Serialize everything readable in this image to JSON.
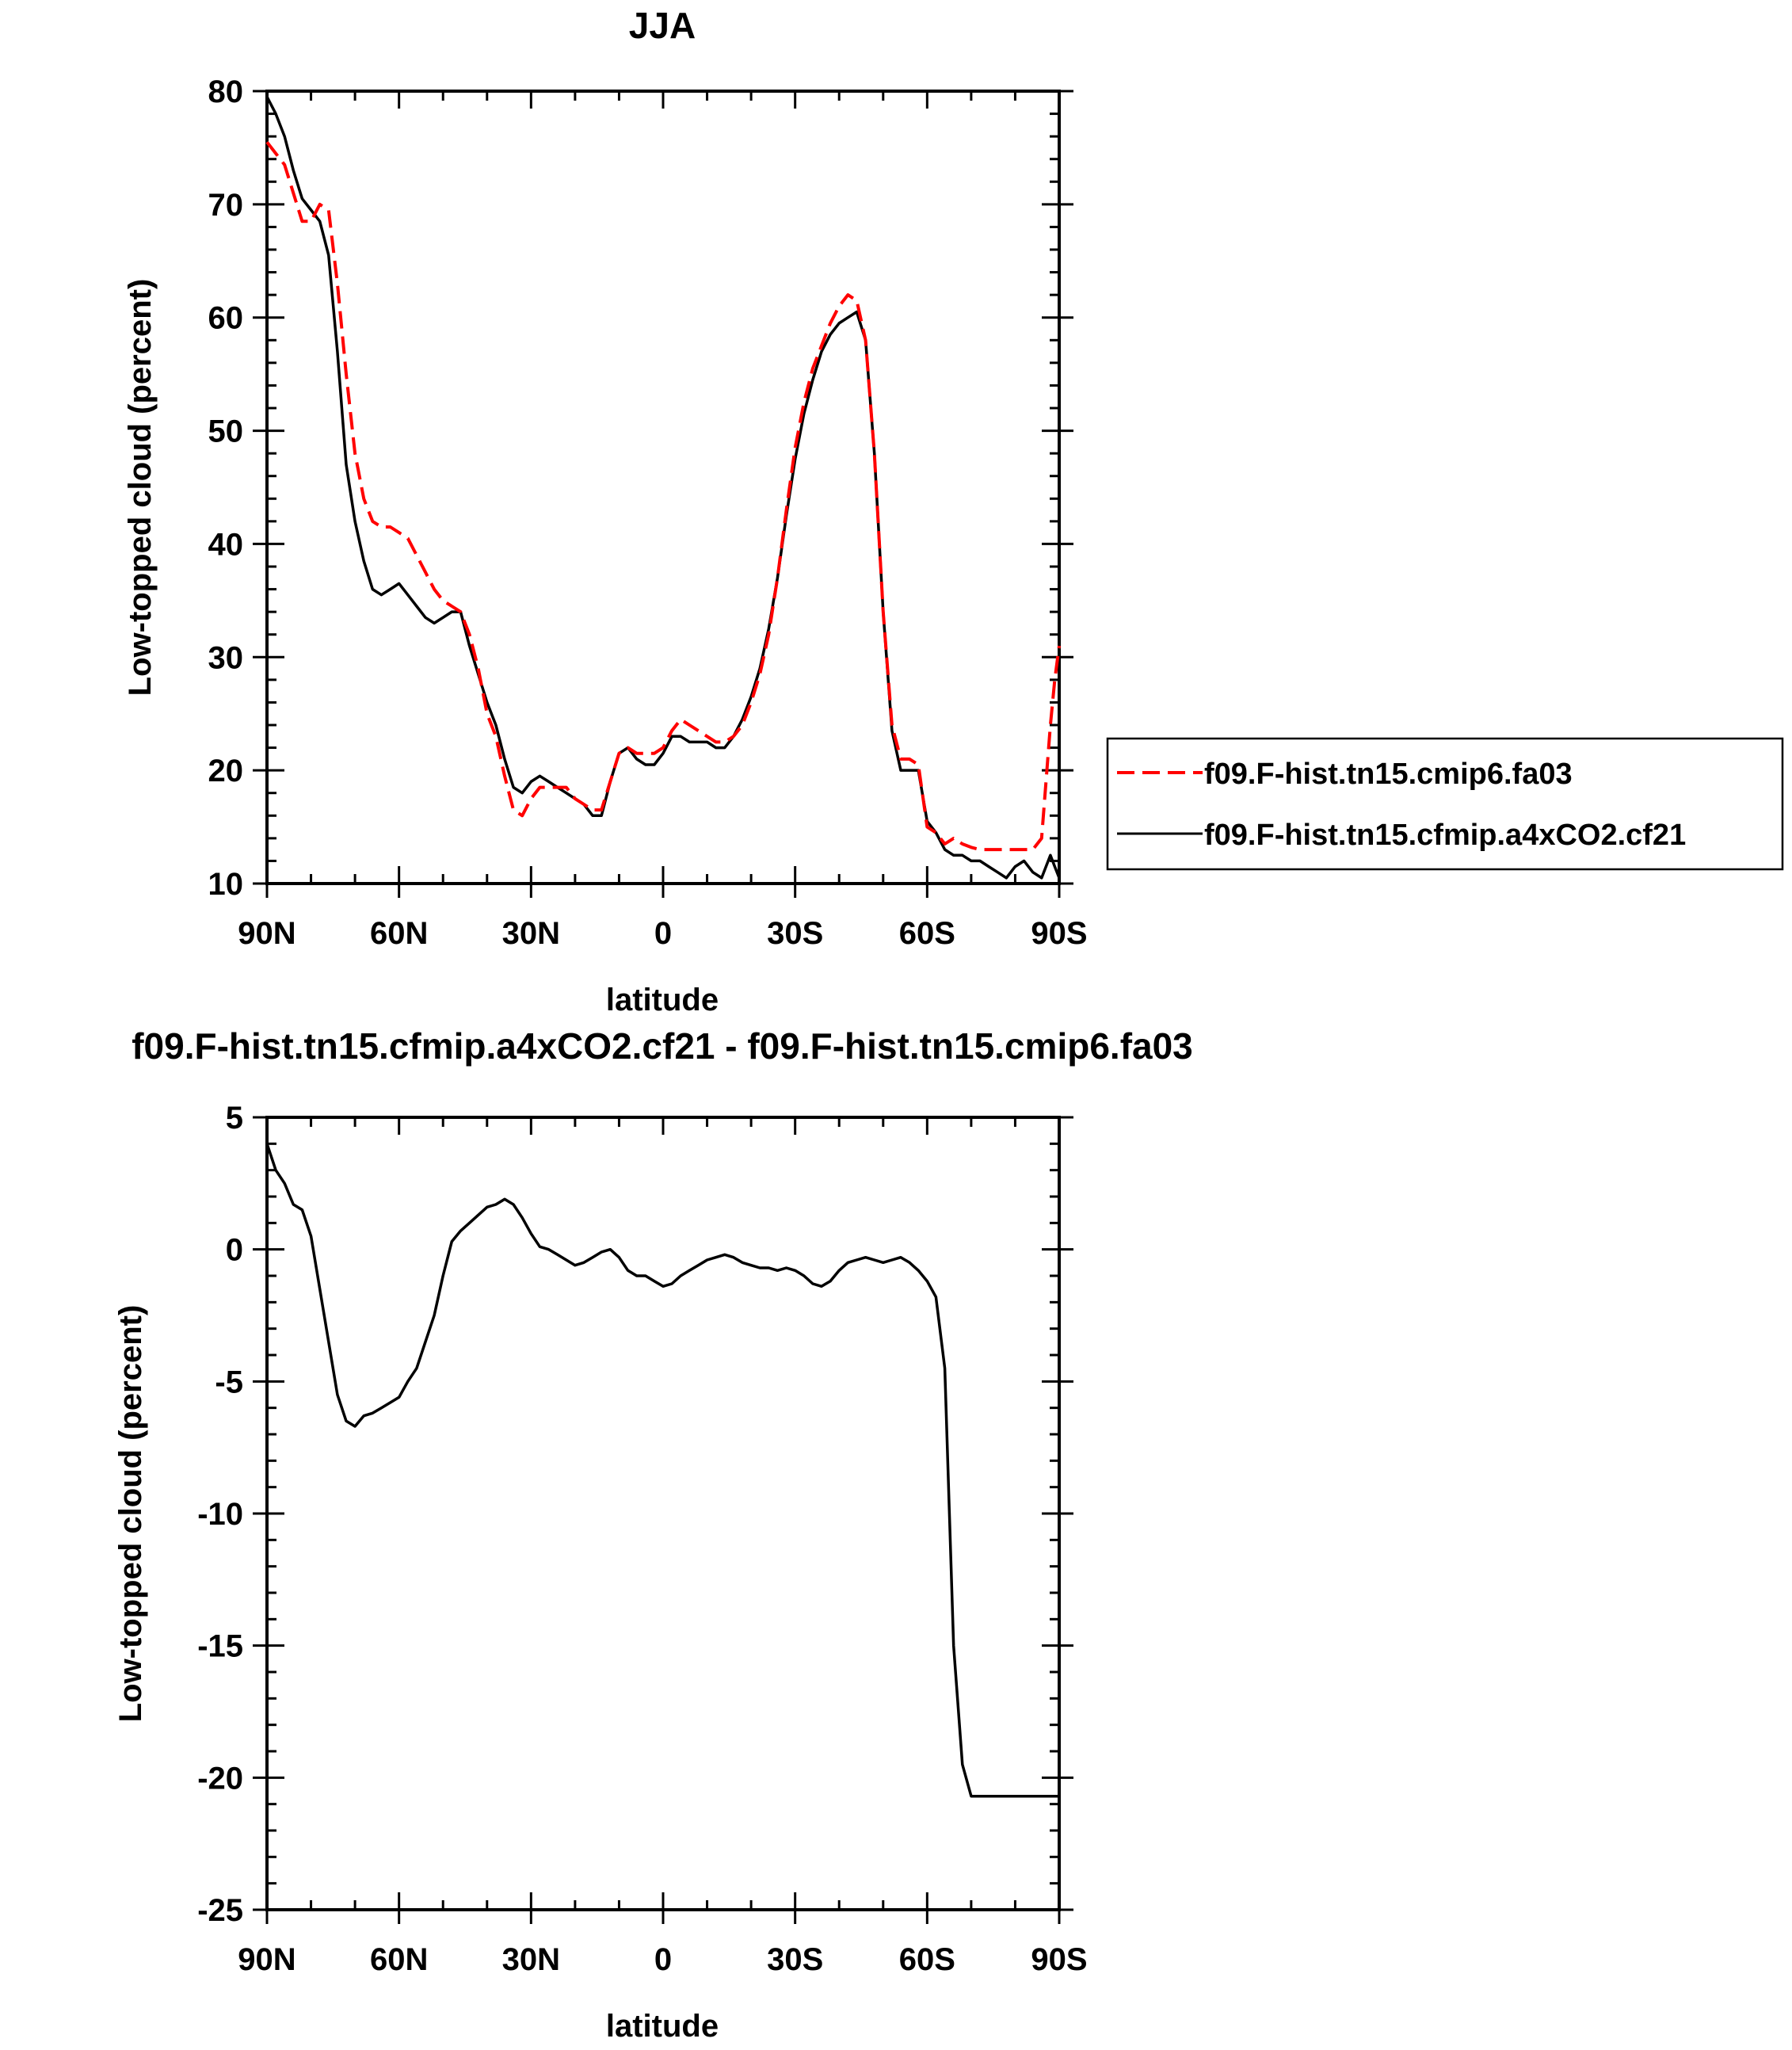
{
  "chart_data": [
    {
      "type": "line",
      "title": "JJA",
      "xlabel": "latitude",
      "ylabel": "Low-topped cloud (percent)",
      "xlim": [
        90,
        -90
      ],
      "ylim": [
        10,
        80
      ],
      "xticks": [
        90,
        60,
        30,
        0,
        -30,
        -60,
        -90
      ],
      "xtick_labels": [
        "90N",
        "60N",
        "30N",
        "0",
        "30S",
        "60S",
        "90S"
      ],
      "yticks": [
        10,
        20,
        30,
        40,
        50,
        60,
        70,
        80
      ],
      "ytick_labels": [
        "10",
        "20",
        "30",
        "40",
        "50",
        "60",
        "70",
        "80"
      ],
      "legend": {
        "placement": "right"
      },
      "series": [
        {
          "name": "f09.F-hist.tn15.cmip6.fa03",
          "color": "#ff0000",
          "dash": "dashed",
          "x": [
            90,
            88,
            86,
            84,
            82,
            80,
            78,
            76,
            74,
            72,
            70,
            68,
            66,
            64,
            62,
            60,
            58,
            56,
            54,
            52,
            50,
            48,
            46,
            44,
            42,
            40,
            38,
            36,
            34,
            32,
            30,
            28,
            26,
            24,
            22,
            20,
            18,
            16,
            14,
            12,
            10,
            8,
            6,
            4,
            2,
            0,
            -2,
            -4,
            -6,
            -8,
            -10,
            -12,
            -14,
            -16,
            -18,
            -20,
            -22,
            -24,
            -26,
            -28,
            -30,
            -32,
            -34,
            -36,
            -38,
            -40,
            -42,
            -44,
            -46,
            -48,
            -50,
            -52,
            -54,
            -56,
            -58,
            -60,
            -62,
            -64,
            -66,
            -68,
            -70,
            -72,
            -74,
            -76,
            -78,
            -80,
            -82,
            -84,
            -86,
            -88,
            -89,
            -90
          ],
          "y": [
            75.5,
            74.5,
            73.5,
            71.0,
            68.5,
            68.5,
            70.0,
            69.5,
            63.0,
            55.0,
            48.0,
            44.0,
            42.0,
            41.5,
            41.5,
            41.0,
            40.5,
            39.0,
            37.5,
            36.0,
            35.0,
            34.5,
            34.0,
            32.0,
            29.0,
            25.0,
            23.0,
            19.5,
            16.5,
            16.0,
            17.5,
            18.5,
            18.5,
            18.5,
            18.5,
            17.5,
            17.0,
            16.5,
            16.5,
            19.0,
            21.5,
            22.0,
            21.5,
            21.5,
            21.5,
            22.0,
            23.5,
            24.5,
            24.0,
            23.5,
            23.0,
            22.5,
            22.5,
            23.0,
            24.0,
            26.0,
            28.5,
            32.0,
            37.0,
            43.0,
            48.5,
            52.5,
            55.5,
            57.5,
            59.5,
            61.0,
            62.0,
            61.5,
            58.0,
            48.0,
            34.0,
            24.0,
            21.0,
            21.0,
            20.5,
            15.0,
            14.5,
            13.5,
            14.0,
            13.5,
            13.2,
            13.0,
            13.0,
            13.0,
            13.0,
            13.0,
            13.0,
            13.0,
            14.0,
            24.0,
            28.0,
            31.0
          ]
        },
        {
          "name": "f09.F-hist.tn15.cfmip.a4xCO2.cf21",
          "color": "#000000",
          "dash": "solid",
          "x": [
            90,
            88,
            86,
            84,
            82,
            80,
            78,
            76,
            74,
            72,
            70,
            68,
            66,
            64,
            62,
            60,
            58,
            56,
            54,
            52,
            50,
            48,
            46,
            44,
            42,
            40,
            38,
            36,
            34,
            32,
            30,
            28,
            26,
            24,
            22,
            20,
            18,
            16,
            14,
            12,
            10,
            8,
            6,
            4,
            2,
            0,
            -2,
            -4,
            -6,
            -8,
            -10,
            -12,
            -14,
            -16,
            -18,
            -20,
            -22,
            -24,
            -26,
            -28,
            -30,
            -32,
            -34,
            -36,
            -38,
            -40,
            -42,
            -44,
            -46,
            -48,
            -50,
            -52,
            -54,
            -56,
            -58,
            -60,
            -62,
            -64,
            -66,
            -68,
            -70,
            -72,
            -74,
            -76,
            -78,
            -80,
            -82,
            -84,
            -86,
            -88,
            -89,
            -90
          ],
          "y": [
            79.5,
            78.0,
            76.0,
            73.0,
            70.5,
            69.5,
            68.5,
            65.5,
            57.0,
            47.0,
            42.0,
            38.5,
            36.0,
            35.5,
            36.0,
            36.5,
            35.5,
            34.5,
            33.5,
            33.0,
            33.5,
            34.0,
            34.0,
            31.0,
            28.5,
            26.0,
            24.0,
            21.0,
            18.5,
            18.0,
            19.0,
            19.5,
            19.0,
            18.5,
            18.0,
            17.5,
            17.0,
            16.0,
            16.0,
            19.0,
            21.5,
            22.0,
            21.0,
            20.5,
            20.5,
            21.5,
            23.0,
            23.0,
            22.5,
            22.5,
            22.5,
            22.0,
            22.0,
            23.0,
            24.5,
            26.5,
            29.0,
            32.5,
            37.0,
            42.5,
            47.5,
            51.5,
            54.5,
            57.0,
            58.5,
            59.5,
            60.0,
            60.5,
            58.0,
            48.0,
            34.0,
            23.5,
            20.0,
            20.0,
            20.0,
            15.5,
            14.5,
            13.0,
            12.5,
            12.5,
            12.0,
            12.0,
            11.5,
            11.0,
            10.5,
            11.5,
            12.0,
            11.0,
            10.5,
            12.5,
            11.5,
            10.5
          ]
        }
      ]
    },
    {
      "type": "line",
      "title": "f09.F-hist.tn15.cfmip.a4xCO2.cf21 - f09.F-hist.tn15.cmip6.fa03",
      "xlabel": "latitude",
      "ylabel": "Low-topped cloud (percent)",
      "xlim": [
        90,
        -90
      ],
      "ylim": [
        -25,
        5
      ],
      "xticks": [
        90,
        60,
        30,
        0,
        -30,
        -60,
        -90
      ],
      "xtick_labels": [
        "90N",
        "60N",
        "30N",
        "0",
        "30S",
        "60S",
        "90S"
      ],
      "yticks": [
        -25,
        -20,
        -15,
        -10,
        -5,
        0,
        5
      ],
      "ytick_labels": [
        "-25",
        "-20",
        "-15",
        "-10",
        "-5",
        "0",
        "5"
      ],
      "series": [
        {
          "color": "#000000",
          "dash": "solid",
          "x": [
            90,
            88,
            86,
            84,
            82,
            80,
            78,
            76,
            74,
            72,
            70,
            68,
            66,
            64,
            62,
            60,
            58,
            56,
            54,
            52,
            50,
            48,
            46,
            44,
            42,
            40,
            38,
            36,
            34,
            32,
            30,
            28,
            26,
            24,
            22,
            20,
            18,
            16,
            14,
            12,
            10,
            8,
            6,
            4,
            2,
            0,
            -2,
            -4,
            -6,
            -8,
            -10,
            -12,
            -14,
            -16,
            -18,
            -20,
            -22,
            -24,
            -26,
            -28,
            -30,
            -32,
            -34,
            -36,
            -38,
            -40,
            -42,
            -44,
            -46,
            -48,
            -50,
            -52,
            -54,
            -56,
            -58,
            -60,
            -62,
            -64,
            -66,
            -68,
            -70,
            -72,
            -74,
            -76,
            -78,
            -80,
            -82,
            -84,
            -86,
            -87,
            -88,
            -89,
            -90
          ],
          "y": [
            4.0,
            3.0,
            2.5,
            1.7,
            1.5,
            0.5,
            -1.5,
            -3.5,
            -5.5,
            -6.5,
            -6.7,
            -6.3,
            -6.2,
            -6.0,
            -5.8,
            -5.6,
            -5.0,
            -4.5,
            -3.5,
            -2.5,
            -1.0,
            0.3,
            0.7,
            1.0,
            1.3,
            1.6,
            1.7,
            1.9,
            1.7,
            1.2,
            0.6,
            0.1,
            0.0,
            -0.2,
            -0.4,
            -0.6,
            -0.5,
            -0.3,
            -0.1,
            0.0,
            -0.3,
            -0.8,
            -1.0,
            -1.0,
            -1.2,
            -1.4,
            -1.3,
            -1.0,
            -0.8,
            -0.6,
            -0.4,
            -0.3,
            -0.2,
            -0.3,
            -0.5,
            -0.6,
            -0.7,
            -0.7,
            -0.8,
            -0.7,
            -0.8,
            -1.0,
            -1.3,
            -1.4,
            -1.2,
            -0.8,
            -0.5,
            -0.4,
            -0.3,
            -0.4,
            -0.5,
            -0.4,
            -0.3,
            -0.5,
            -0.8,
            -1.2,
            -1.8,
            -4.5,
            -15.0,
            -19.5,
            -20.7,
            -20.7,
            -20.7,
            -20.7,
            -20.7,
            -20.7,
            -20.7,
            -20.7,
            -20.7,
            -20.7,
            -20.7,
            -20.7,
            -20.7
          ]
        }
      ]
    }
  ]
}
